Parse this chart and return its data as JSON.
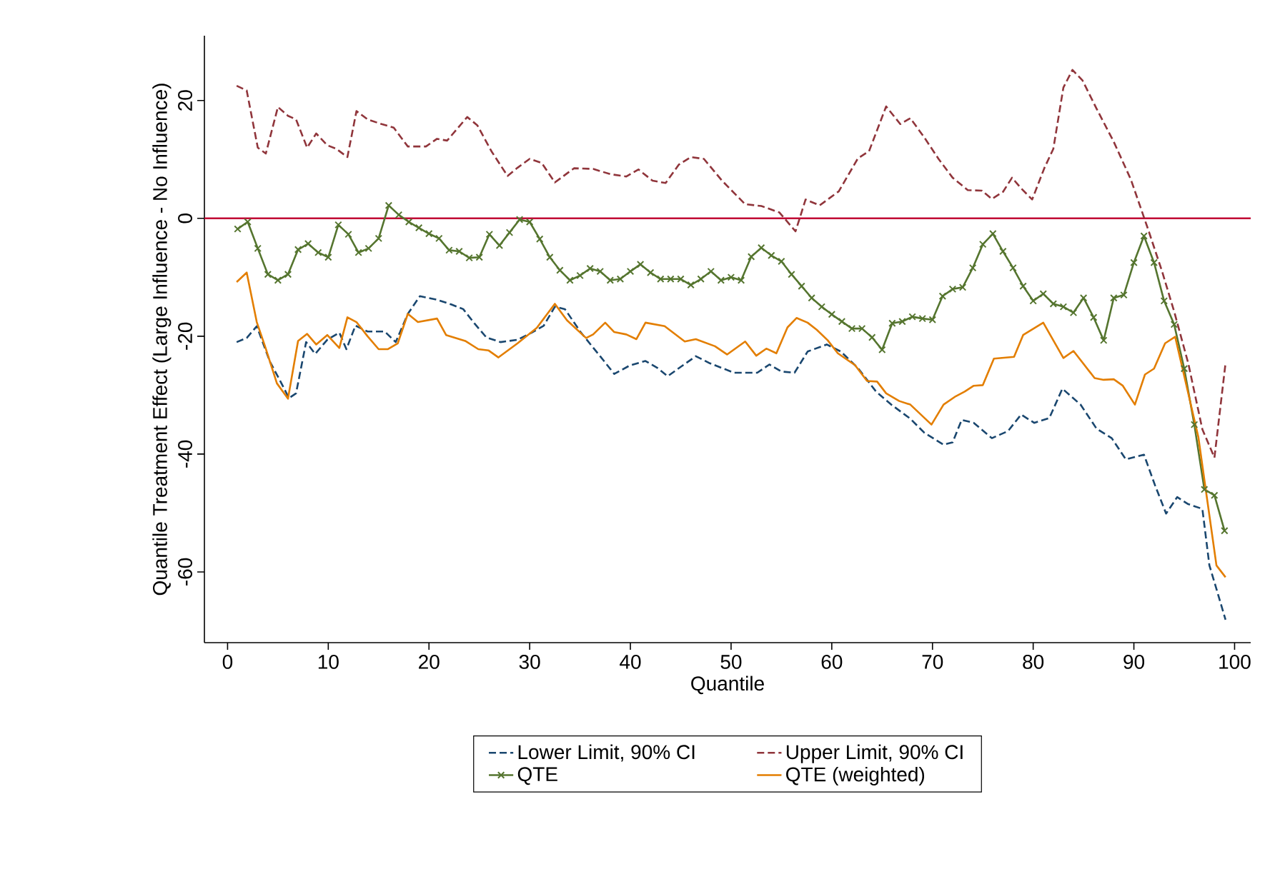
{
  "chart_data": {
    "type": "line",
    "xlabel": "Quantile",
    "ylabel": "Quantile Treatment Effect (Large Influence - No Influence)",
    "xlim": [
      -2.3,
      101.6
    ],
    "ylim": [
      -72,
      31
    ],
    "xticks": [
      0,
      10,
      20,
      30,
      40,
      50,
      60,
      70,
      80,
      90,
      100
    ],
    "yticks": [
      -60,
      -40,
      -20,
      0,
      20
    ],
    "legend": "bottom",
    "grid": false,
    "ref_lines": [
      {
        "axis": "y",
        "value": 0,
        "color": "#c10534"
      }
    ],
    "series": [
      {
        "name": "Lower Limit, 90% CI",
        "color": "#1a476f",
        "line_style": "dashed",
        "x": [
          0.9,
          1.9,
          2.9,
          4.2,
          5.2,
          6.1,
          6.8,
          7.8,
          8.7,
          9.9,
          11.1,
          11.8,
          12.7,
          13.9,
          15.6,
          16.7,
          17.9,
          19.1,
          20.8,
          22.2,
          23.4,
          24.5,
          25.7,
          27.1,
          28.8,
          30.2,
          31.4,
          32.5,
          33.5,
          35.1,
          37,
          38.4,
          39.9,
          41.5,
          42.7,
          43.7,
          45,
          46.5,
          47.9,
          50.3,
          52.6,
          53.8,
          55,
          56.3,
          57.6,
          59.5,
          60.9,
          62.6,
          64.4,
          65.9,
          67.8,
          69.2,
          71.1,
          72,
          72.9,
          74.1,
          75.9,
          77.5,
          78.8,
          80.1,
          81.6,
          82.9,
          84.7,
          86.3,
          87.8,
          89.2,
          91,
          92.1,
          93.2,
          94.3,
          95.4,
          96.8,
          97.5,
          98.2,
          99.1
        ],
        "values": [
          -21,
          -20.3,
          -18.3,
          -24.3,
          -27.5,
          -30.5,
          -29.7,
          -21,
          -23,
          -20.6,
          -19.4,
          -22.2,
          -18.2,
          -19.2,
          -19.2,
          -21,
          -16.2,
          -13.2,
          -13.8,
          -14.6,
          -15.4,
          -17.8,
          -20.2,
          -21,
          -20.6,
          -19.4,
          -18.2,
          -15,
          -15.4,
          -19.4,
          -23.4,
          -26.4,
          -25,
          -24.2,
          -25.4,
          -26.8,
          -25.2,
          -23.4,
          -24.6,
          -26.2,
          -26.2,
          -24.8,
          -26,
          -26.2,
          -22.6,
          -21.4,
          -22.6,
          -25.4,
          -29.4,
          -31.6,
          -34,
          -36.4,
          -38.4,
          -38,
          -34.2,
          -34.7,
          -37.3,
          -36.1,
          -33.3,
          -34.7,
          -33.9,
          -28.9,
          -31.6,
          -35.7,
          -37.3,
          -40.9,
          -40.1,
          -45.3,
          -50.1,
          -47.3,
          -48.5,
          -49.3,
          -58.9,
          -62.9,
          -68.1
        ]
      },
      {
        "name": "Upper Limit, 90% CI",
        "color": "#90353b",
        "line_style": "dashed",
        "x": [
          0.9,
          1.9,
          3,
          3.8,
          5,
          6,
          6.8,
          7.9,
          8.8,
          9.9,
          10.8,
          11.9,
          12.8,
          13.9,
          15.3,
          16.5,
          17.9,
          19.7,
          20.8,
          21.8,
          22.7,
          23.8,
          24.8,
          26.2,
          27.8,
          28.8,
          30,
          31.2,
          32.5,
          34.4,
          36.3,
          38,
          39.6,
          40.8,
          42.2,
          43.5,
          44.8,
          46,
          47.3,
          49.1,
          51.4,
          53,
          54.8,
          56.4,
          57.4,
          58.8,
          60.7,
          62.6,
          63.7,
          65.4,
          66.8,
          67.8,
          69.2,
          70.6,
          72,
          73.5,
          74.9,
          75.9,
          77,
          77.9,
          78.8,
          79.9,
          81.1,
          82,
          83,
          83.9,
          84.9,
          86.3,
          88,
          89.7,
          91.4,
          92.8,
          94,
          95.4,
          96.8,
          98,
          99.1
        ],
        "values": [
          22.5,
          21.7,
          12,
          11,
          18.9,
          17.4,
          16.8,
          12,
          14.4,
          12.4,
          11.8,
          10.4,
          18.2,
          16.8,
          16,
          15.4,
          12.2,
          12.2,
          13.5,
          13.2,
          15,
          17.2,
          15.8,
          11.4,
          7.2,
          8.6,
          10.1,
          9.4,
          6.1,
          8.5,
          8.4,
          7.5,
          7.1,
          8.3,
          6.4,
          6,
          9.1,
          10.4,
          10.1,
          6.4,
          2.4,
          2.1,
          1,
          -2.2,
          3.2,
          2.2,
          4.6,
          10.2,
          11.4,
          19,
          16,
          17,
          13.7,
          10.1,
          6.9,
          4.8,
          4.7,
          3.3,
          4.5,
          6.9,
          5.1,
          3.2,
          8.5,
          11.8,
          22.2,
          25.2,
          23.4,
          18.6,
          13,
          6.6,
          -1.8,
          -9,
          -15.8,
          -24.6,
          -35.8,
          -40.6,
          -24.6
        ]
      },
      {
        "name": "QTE",
        "color": "#55752f",
        "line_style": "solid",
        "marker": "cross",
        "x": [
          1,
          2,
          3,
          4,
          5,
          6,
          7,
          8,
          9,
          10,
          11,
          12,
          13,
          14,
          15,
          16,
          17,
          18,
          19,
          20,
          21,
          22,
          23,
          24,
          25,
          26,
          27,
          28,
          29,
          30,
          31,
          32,
          33,
          34,
          35,
          36,
          37,
          38,
          39,
          40,
          41,
          42,
          43,
          44,
          45,
          46,
          47,
          48,
          49,
          50,
          51,
          52,
          53,
          54,
          55,
          56,
          57,
          58,
          59,
          60,
          61,
          62,
          63,
          64,
          65,
          66,
          67,
          68,
          69,
          70,
          71,
          72,
          73,
          74,
          75,
          76,
          77,
          78,
          79,
          80,
          81,
          82,
          83,
          84,
          85,
          86,
          87,
          88,
          89,
          90,
          91,
          92,
          93,
          94,
          95,
          96,
          97,
          98,
          99
        ],
        "values": [
          -1.8,
          -0.6,
          -5.1,
          -9.5,
          -10.5,
          -9.5,
          -5.3,
          -4.3,
          -5.8,
          -6.6,
          -1.1,
          -2.7,
          -5.8,
          -5.1,
          -3.4,
          2.2,
          0.6,
          -0.6,
          -1.6,
          -2.6,
          -3.4,
          -5.4,
          -5.6,
          -6.7,
          -6.6,
          -2.7,
          -4.6,
          -2.4,
          -0.2,
          -0.6,
          -3.5,
          -6.6,
          -8.8,
          -10.5,
          -9.7,
          -8.5,
          -9,
          -10.5,
          -10.3,
          -9,
          -7.8,
          -9.2,
          -10.3,
          -10.3,
          -10.3,
          -11.3,
          -10.3,
          -9,
          -10.5,
          -10,
          -10.5,
          -6.5,
          -5,
          -6.3,
          -7.3,
          -9.5,
          -11.5,
          -13.5,
          -15,
          -16.3,
          -17.5,
          -18.7,
          -18.7,
          -20.2,
          -22.3,
          -17.8,
          -17.5,
          -16.7,
          -17,
          -17.2,
          -13.2,
          -12,
          -11.7,
          -8.4,
          -4.4,
          -2.6,
          -5.6,
          -8.4,
          -11.5,
          -14,
          -12.8,
          -14.5,
          -15,
          -16,
          -13.5,
          -16.8,
          -20.7,
          -13.5,
          -13,
          -7.5,
          -3,
          -7.5,
          -14,
          -18,
          -25.5,
          -35,
          -46,
          -47,
          -53
        ]
      },
      {
        "name": "QTE (weighted)",
        "color": "#e37e00",
        "line_style": "solid",
        "x": [
          0.9,
          1.9,
          2.9,
          3.7,
          4.9,
          6,
          7,
          7.9,
          8.8,
          9.9,
          11.1,
          11.9,
          12.8,
          13.9,
          15,
          15.9,
          16.9,
          17.9,
          18.9,
          20.8,
          21.7,
          23.6,
          24.9,
          25.9,
          26.9,
          28.8,
          30.7,
          32.5,
          33.7,
          35.6,
          36.3,
          37.5,
          38.4,
          39.6,
          40.6,
          41.5,
          43.4,
          45.4,
          46.5,
          48.4,
          49.6,
          51.4,
          52.5,
          53.5,
          54.5,
          55.6,
          56.5,
          57.6,
          58.5,
          59.6,
          60.6,
          62.3,
          63.5,
          64.5,
          65.4,
          66.7,
          67.8,
          69.9,
          71.1,
          72.3,
          73.2,
          74.1,
          75,
          76.1,
          78.1,
          79,
          81,
          83,
          84,
          86.1,
          87,
          88,
          88.9,
          90.1,
          91.1,
          92,
          93.1,
          94.1,
          96.4,
          98.2,
          99.1
        ],
        "values": [
          -10.8,
          -9.2,
          -17.6,
          -21.6,
          -28,
          -30.6,
          -20.8,
          -19.6,
          -21.4,
          -19.8,
          -22,
          -16.8,
          -17.6,
          -20,
          -22.2,
          -22.2,
          -21.2,
          -16.2,
          -17.6,
          -17,
          -19.8,
          -20.8,
          -22.2,
          -22.4,
          -23.6,
          -21.2,
          -18.6,
          -14.5,
          -17.3,
          -20.3,
          -19.7,
          -17.7,
          -19.3,
          -19.7,
          -20.5,
          -17.7,
          -18.3,
          -20.9,
          -20.5,
          -21.7,
          -23.1,
          -20.9,
          -23.3,
          -22.1,
          -22.9,
          -18.5,
          -16.9,
          -17.7,
          -18.9,
          -20.7,
          -22.9,
          -24.9,
          -27.6,
          -27.7,
          -29.7,
          -31,
          -31.6,
          -35,
          -31.6,
          -30.2,
          -29.4,
          -28.4,
          -28.3,
          -23.8,
          -23.5,
          -19.8,
          -17.7,
          -23.7,
          -22.5,
          -27.1,
          -27.4,
          -27.3,
          -28.4,
          -31.6,
          -26.5,
          -25.5,
          -21.2,
          -20.1,
          -37.1,
          -58.9,
          -60.9
        ]
      }
    ]
  }
}
